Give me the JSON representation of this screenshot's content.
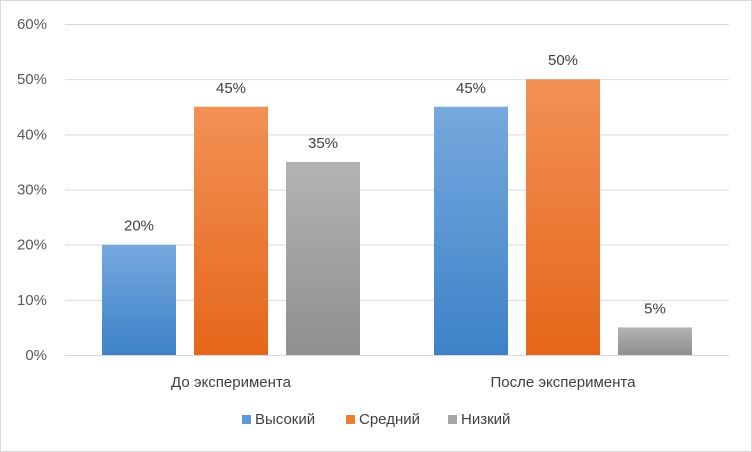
{
  "chart_data": {
    "type": "bar",
    "categories": [
      "До эксперимента",
      "После эксперимента"
    ],
    "series": [
      {
        "name": "Высокий",
        "values": [
          20,
          45
        ],
        "color": "#5b9bd5",
        "gradient_top": "#76a9dd",
        "gradient_bottom": "#3d82c8"
      },
      {
        "name": "Средний",
        "values": [
          45,
          50
        ],
        "color": "#ed7d31",
        "gradient_top": "#f29155",
        "gradient_bottom": "#e5661a"
      },
      {
        "name": "Низкий",
        "values": [
          35,
          5
        ],
        "color": "#a5a5a5",
        "gradient_top": "#b3b3b3",
        "gradient_bottom": "#8f8f8f"
      }
    ],
    "value_suffix": "%",
    "ylim": [
      0,
      60
    ],
    "yticks": [
      0,
      10,
      20,
      30,
      40,
      50,
      60
    ],
    "ytick_labels": [
      "0%",
      "10%",
      "20%",
      "30%",
      "40%",
      "50%",
      "60%"
    ],
    "data_labels": [
      [
        "20%",
        "45%"
      ],
      [
        "45%",
        "50%"
      ],
      [
        "35%",
        "5%"
      ]
    ],
    "grid": true,
    "legend_position": "bottom",
    "title": "",
    "xlabel": "",
    "ylabel": "",
    "colors": {
      "grid": "#d9d9d9",
      "text": "#404040",
      "tick_text": "#595959"
    }
  }
}
